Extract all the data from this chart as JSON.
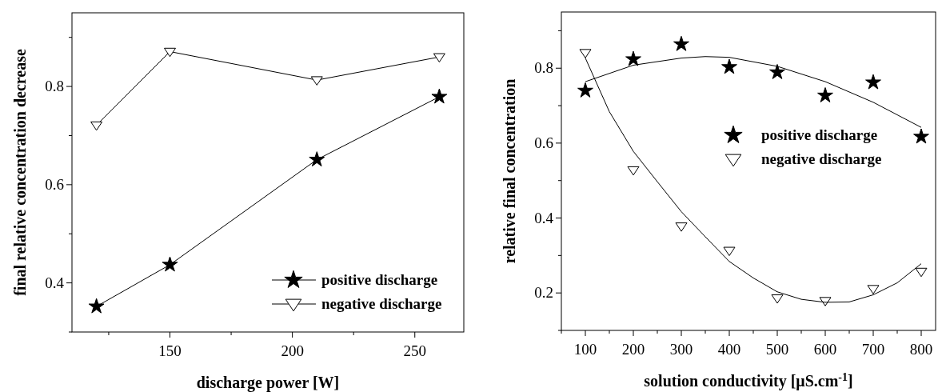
{
  "chart_data": [
    {
      "type": "line",
      "xlabel": "discharge power [W]",
      "ylabel": "final relative concentration decrease",
      "xlim": [
        110,
        270
      ],
      "ylim": [
        0.3,
        0.95
      ],
      "xticks": [
        {
          "value": 125,
          "label": null
        },
        150,
        {
          "value": 175,
          "label": null
        },
        200,
        {
          "value": 225,
          "label": null
        },
        250
      ],
      "yticks": [
        {
          "value": 0.3,
          "label": null
        },
        0.4,
        {
          "value": 0.5,
          "label": null
        },
        0.6,
        {
          "value": 0.7,
          "label": null
        },
        0.8,
        {
          "value": 0.9,
          "label": null
        }
      ],
      "x": [
        120,
        150,
        210,
        260
      ],
      "legend": "bottom right",
      "grid": false,
      "line_style": "solid",
      "series": [
        {
          "name": "positive discharge",
          "color": "#000000",
          "marker": "star",
          "values": [
            0.352,
            0.437,
            0.651,
            0.779
          ]
        },
        {
          "name": "negative discharge",
          "color": "#000000",
          "marker": "triangle",
          "values": [
            0.721,
            0.871,
            0.813,
            0.86
          ]
        }
      ]
    },
    {
      "type": "scatter",
      "xlabel": "solution conductivity [μS.cm$^{-1}$]",
      "ylabel": "relative final concentration",
      "xlim": [
        50,
        830
      ],
      "ylim": [
        0.1,
        0.95
      ],
      "xticks": [
        {
          "value": 50,
          "label": null
        },
        100,
        {
          "value": 150,
          "label": null
        },
        200,
        {
          "value": 250,
          "label": null
        },
        300,
        {
          "value": 350,
          "label": null
        },
        400,
        {
          "value": 450,
          "label": null
        },
        500,
        {
          "value": 550,
          "label": null
        },
        600,
        {
          "value": 650,
          "label": null
        },
        700,
        {
          "value": 750,
          "label": null
        },
        800
      ],
      "yticks": [
        {
          "value": 0.1,
          "label": null
        },
        0.2,
        {
          "value": 0.3,
          "label": null
        },
        0.4,
        {
          "value": 0.5,
          "label": null
        },
        0.6,
        {
          "value": 0.7,
          "label": null
        },
        0.8,
        {
          "value": 0.9,
          "label": null
        }
      ],
      "x": [
        100,
        200,
        300,
        400,
        500,
        600,
        700,
        800
      ],
      "legend": "right",
      "grid": false,
      "series": [
        {
          "name": "positive discharge",
          "color": "#000000",
          "marker": "star",
          "values": [
            0.74,
            0.824,
            0.864,
            0.803,
            0.789,
            0.727,
            0.762,
            0.617
          ]
        },
        {
          "name": "negative discharge",
          "color": "#000000",
          "marker": "triangle",
          "values": [
            0.841,
            0.528,
            0.378,
            0.313,
            0.186,
            0.179,
            0.211,
            0.257
          ]
        },
        {
          "type": "line",
          "color": "#000000",
          "marker": "none",
          "line_style": "solid",
          "x": [
            100,
            200,
            300,
            350,
            400,
            500,
            600,
            700,
            800
          ],
          "values": [
            0.764,
            0.808,
            0.827,
            0.831,
            0.829,
            0.805,
            0.764,
            0.709,
            0.642
          ]
        },
        {
          "type": "line",
          "color": "#000000",
          "marker": "none",
          "line_style": "solid",
          "x": [
            100,
            150,
            200,
            250,
            300,
            350,
            400,
            450,
            500,
            550,
            600,
            650,
            700,
            750,
            800
          ],
          "values": [
            0.827,
            0.684,
            0.578,
            0.497,
            0.417,
            0.35,
            0.284,
            0.24,
            0.203,
            0.183,
            0.175,
            0.176,
            0.195,
            0.227,
            0.278
          ]
        }
      ]
    }
  ]
}
